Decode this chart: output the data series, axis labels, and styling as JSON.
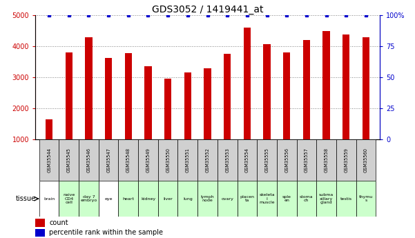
{
  "title": "GDS3052 / 1419441_at",
  "samples": [
    "GSM35544",
    "GSM35545",
    "GSM35546",
    "GSM35547",
    "GSM35548",
    "GSM35549",
    "GSM35550",
    "GSM35551",
    "GSM35552",
    "GSM35553",
    "GSM35554",
    "GSM35555",
    "GSM35556",
    "GSM35557",
    "GSM35558",
    "GSM35559",
    "GSM35560"
  ],
  "counts": [
    1650,
    3800,
    4300,
    3620,
    3780,
    3360,
    2960,
    3150,
    3300,
    3770,
    4600,
    4080,
    3800,
    4200,
    4500,
    4380,
    4300
  ],
  "percentiles": [
    100,
    100,
    100,
    100,
    100,
    100,
    100,
    100,
    100,
    100,
    100,
    100,
    100,
    100,
    100,
    100,
    100
  ],
  "tissues": [
    "brain",
    "naive\nCD4\ncell",
    "day 7\nembryо",
    "eye",
    "heart",
    "kidney",
    "liver",
    "lung",
    "lymph\nnode",
    "ovary",
    "placen\nta",
    "skeleta\nl\nmuscle",
    "sple\nen",
    "stoma\nch",
    "subma\nxillary\ngland",
    "testis",
    "thymu\ns"
  ],
  "tissue_colors": [
    "#ffffff",
    "#ccffcc",
    "#ccffcc",
    "#ffffff",
    "#ccffcc",
    "#ccffcc",
    "#ccffcc",
    "#ccffcc",
    "#ccffcc",
    "#ccffcc",
    "#ccffcc",
    "#ccffcc",
    "#ccffcc",
    "#ccffcc",
    "#ccffcc",
    "#ccffcc",
    "#ccffcc"
  ],
  "sample_box_color": "#d0d0d0",
  "bar_color": "#cc0000",
  "dot_color": "#0000cc",
  "left_axis_color": "#cc0000",
  "right_axis_color": "#0000cc",
  "ylim_left": [
    1000,
    5000
  ],
  "ylim_right": [
    0,
    100
  ],
  "yticks_left": [
    1000,
    2000,
    3000,
    4000,
    5000
  ],
  "ytick_labels_right": [
    "0",
    "25",
    "50",
    "75",
    "100%"
  ],
  "grid_values": [
    2000,
    3000,
    4000,
    5000
  ],
  "background_color": "#ffffff",
  "title_fontsize": 10
}
